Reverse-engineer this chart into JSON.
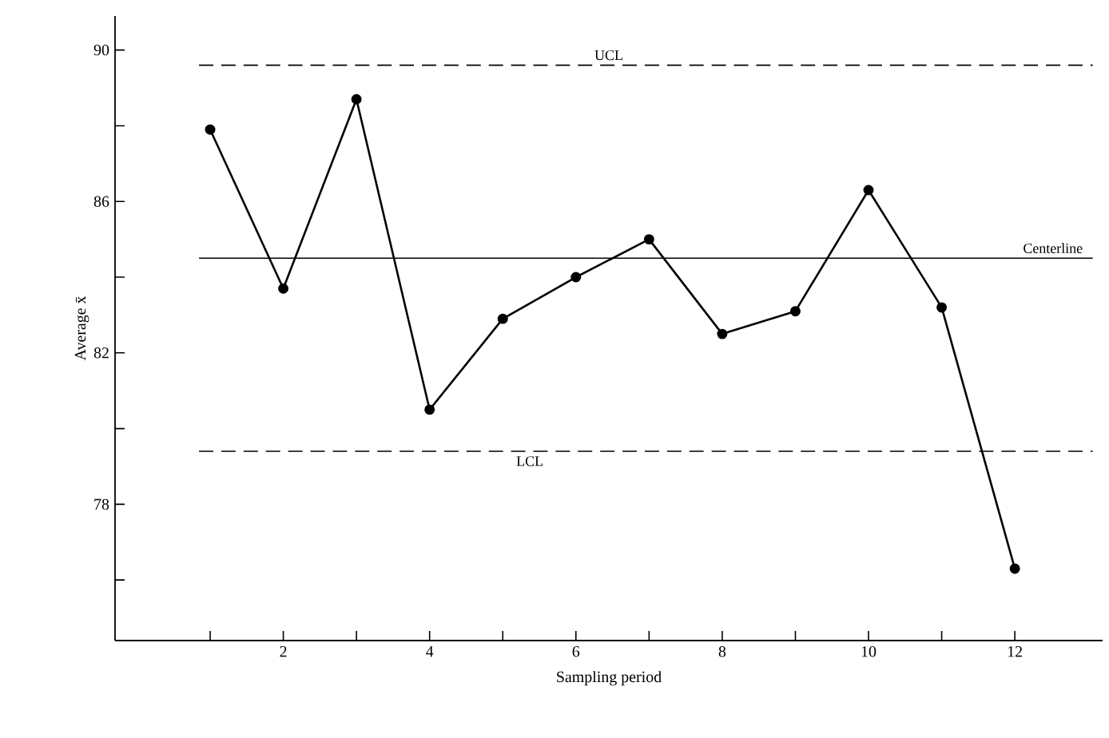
{
  "chart_data": {
    "type": "line",
    "xlabel": "Sampling period",
    "ylabel": "Average x̄",
    "x": [
      1,
      2,
      3,
      4,
      5,
      6,
      7,
      8,
      9,
      10,
      11,
      12
    ],
    "series": [
      {
        "color": "#000000",
        "values": [
          87.9,
          83.7,
          88.7,
          80.5,
          82.9,
          84.0,
          85.0,
          82.5,
          83.1,
          86.3,
          83.2,
          76.3
        ]
      }
    ],
    "xlim": [
      -0.3,
      13.2
    ],
    "ylim": [
      74.4,
      90.9
    ],
    "xticks": [
      {
        "value": 1,
        "label": null
      },
      2,
      {
        "value": 3,
        "label": null
      },
      4,
      {
        "value": 5,
        "label": null
      },
      6,
      {
        "value": 7,
        "label": null
      },
      8,
      {
        "value": 9,
        "label": null
      },
      10,
      {
        "value": 11,
        "label": null
      },
      12
    ],
    "yticks": [
      {
        "value": 76,
        "label": null
      },
      78,
      {
        "value": 80,
        "label": null
      },
      82,
      {
        "value": 84,
        "label": null
      },
      86,
      {
        "value": 88,
        "label": null
      },
      90
    ],
    "ref_lines": [
      {
        "axis": "y",
        "value": 89.6,
        "label": "UCL",
        "line_style": "dashed",
        "color": "#000000"
      },
      {
        "axis": "y",
        "value": 84.5,
        "label": "Centerline",
        "line_style": "solid",
        "color": "#000000"
      },
      {
        "axis": "y",
        "value": 79.4,
        "label": "LCL",
        "line_style": "dashed",
        "color": "#000000"
      }
    ],
    "marker": "circle",
    "line_style": "solid",
    "grid": false
  }
}
